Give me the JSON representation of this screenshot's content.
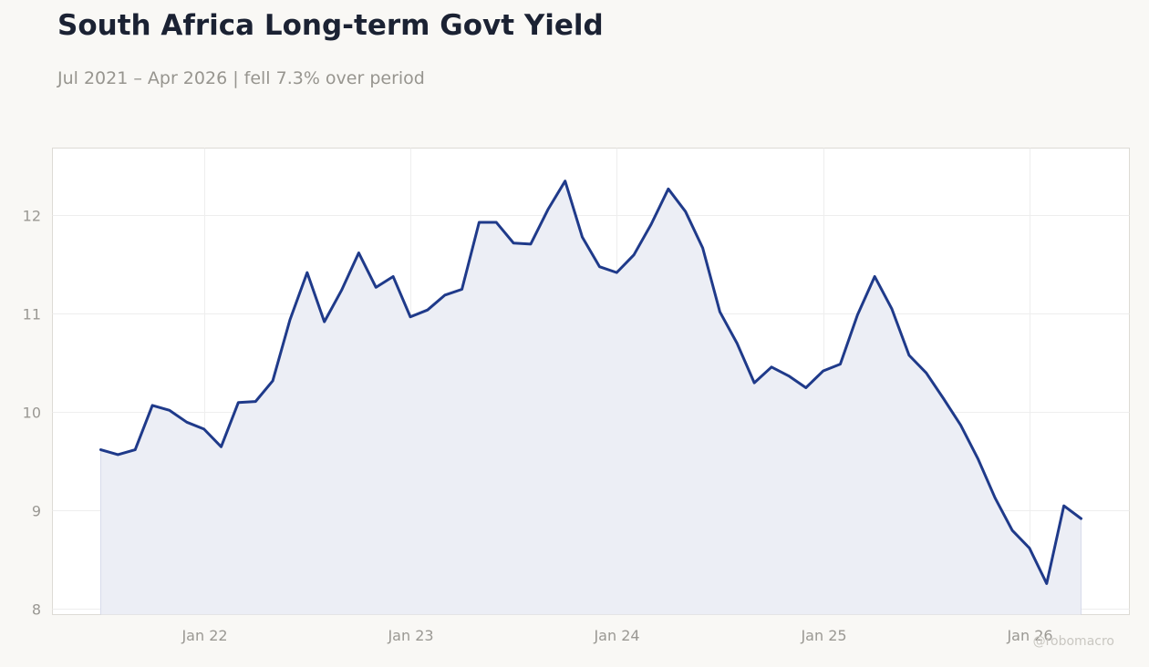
{
  "header": {
    "title": "South Africa Long-term Govt Yield",
    "subtitle": "Jul 2021 – Apr 2026 | fell 7.3% over period"
  },
  "credit": "@robomacro",
  "colors": {
    "line": "#1f3a8a",
    "fill": "#eceef5",
    "grid": "#eeeeee",
    "background": "#f9f8f5",
    "plot_background": "#ffffff",
    "tick_text": "#9a9893"
  },
  "chart_data": {
    "type": "area",
    "title": "South Africa Long-term Govt Yield",
    "subtitle": "Jul 2021 – Apr 2026 | fell 7.3% over period",
    "xlabel": "",
    "ylabel": "",
    "x_start": "2021-07",
    "x_frequency": "monthly (approx. 0.84 month steps)",
    "x_ticks": [
      "Jan 22",
      "Jan 23",
      "Jan 24",
      "Jan 25",
      "Jan 26"
    ],
    "y_ticks": [
      "8",
      "9",
      "10",
      "11",
      "12"
    ],
    "ylim": [
      7.95,
      12.68
    ],
    "grid": true,
    "legend": "none",
    "series": [
      {
        "values": [
          9.62,
          9.57,
          9.62,
          10.07,
          10.02,
          9.9,
          9.83,
          9.65,
          10.1,
          10.11,
          10.32,
          10.94,
          11.42,
          10.92,
          11.24,
          11.62,
          11.27,
          11.38,
          10.97,
          11.04,
          11.19,
          11.25,
          11.93,
          11.93,
          11.72,
          11.71,
          12.06,
          12.35,
          11.78,
          11.48,
          11.42,
          11.6,
          11.91,
          12.27,
          12.04,
          11.67,
          11.02,
          10.7,
          10.3,
          10.46,
          10.37,
          10.25,
          10.42,
          10.49,
          10.99,
          11.38,
          11.05,
          10.58,
          10.4,
          10.14,
          9.87,
          9.53,
          9.13,
          8.8,
          8.62,
          8.26,
          9.05,
          8.92
        ]
      }
    ]
  }
}
